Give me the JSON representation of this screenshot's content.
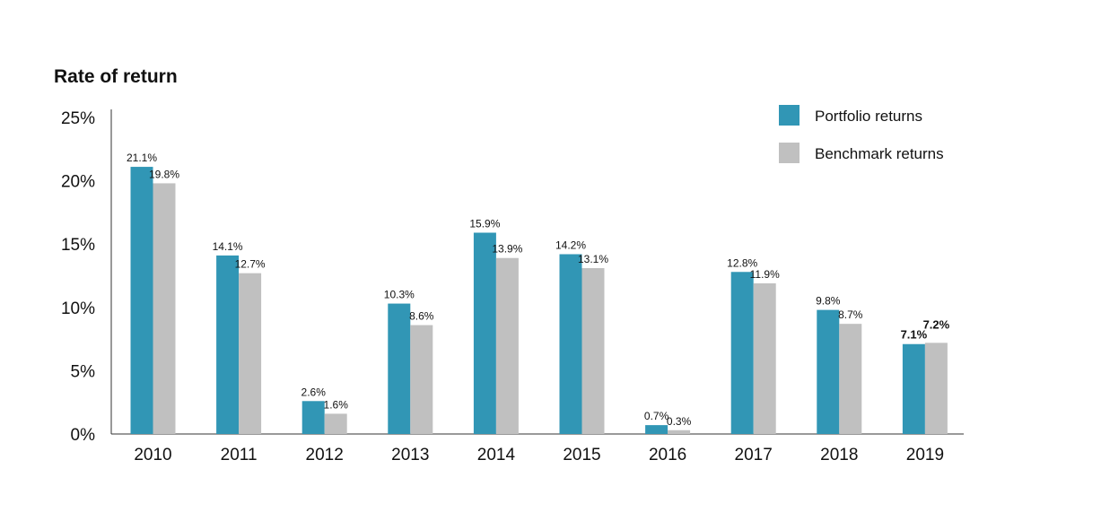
{
  "chart_data": {
    "type": "bar",
    "title": "Rate of return",
    "xlabel": "",
    "ylabel": "",
    "categories": [
      "2010",
      "2011",
      "2012",
      "2013",
      "2014",
      "2015",
      "2016",
      "2017",
      "2018",
      "2019"
    ],
    "series": [
      {
        "name": "Portfolio returns",
        "color": "#3196b5",
        "values": [
          21.1,
          14.1,
          2.6,
          10.3,
          15.9,
          14.2,
          0.7,
          12.8,
          9.8,
          7.1
        ],
        "labels": [
          "21.1%",
          "14.1%",
          "2.6%",
          "10.3%",
          "15.9%",
          "14.2%",
          "0.7%",
          "12.8%",
          "9.8%",
          "7.1%"
        ]
      },
      {
        "name": "Benchmark returns",
        "color": "#c0c0c0",
        "values": [
          19.8,
          12.7,
          1.6,
          8.6,
          13.9,
          13.1,
          0.3,
          11.9,
          8.7,
          7.2
        ],
        "labels": [
          "19.8%",
          "12.7%",
          "1.6%",
          "8.6%",
          "13.9%",
          "13.1%",
          "0.3%",
          "11.9%",
          "8.7%",
          "7.2%"
        ]
      }
    ],
    "ylim": [
      0,
      25
    ],
    "yticks": [
      0,
      5,
      10,
      15,
      20,
      25
    ],
    "ytick_labels": [
      "0%",
      "5%",
      "10%",
      "15%",
      "20%",
      "25%"
    ],
    "bold_label_categories": [
      "2019"
    ],
    "grid": false,
    "legend_position": "top-right"
  }
}
